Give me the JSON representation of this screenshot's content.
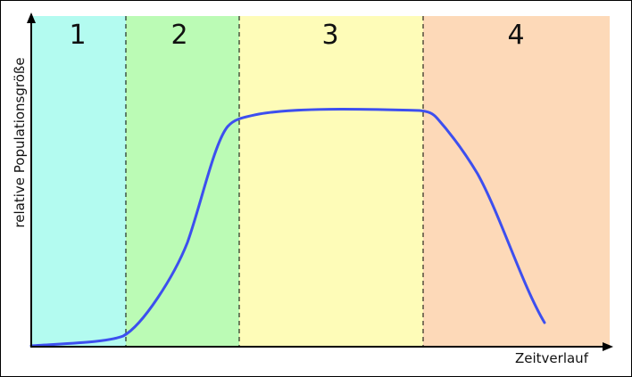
{
  "phases": [
    "1",
    "2",
    "3",
    "4"
  ],
  "axes": {
    "y_label": "relative Populationsgröße",
    "x_label": "Zeitverlauf"
  }
}
